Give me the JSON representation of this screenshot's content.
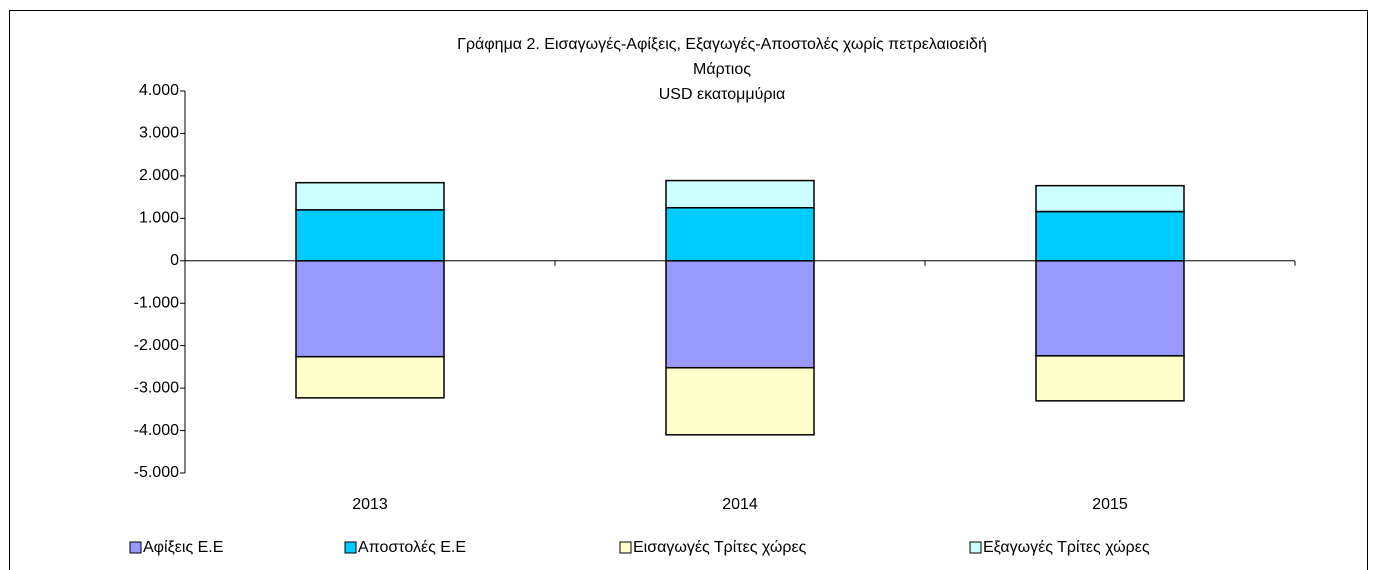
{
  "chart_data": {
    "type": "bar",
    "stacked": true,
    "title": "Γράφημα 2. Εισαγωγές-Αφίξεις,  Εξαγωγές-Αποστολές χωρίς πετρελαιοειδή",
    "subtitle": [
      "Μάρτιος",
      "USD εκατομμύρια"
    ],
    "categories": [
      "2013",
      "2014",
      "2015"
    ],
    "series": [
      {
        "name": "Αφίξεις Ε.Ε",
        "color": "#9999ff",
        "values": [
          -2260,
          -2520,
          -2240
        ]
      },
      {
        "name": "Αποστολές  Ε.Ε",
        "color": "#00ccff",
        "values": [
          1200,
          1250,
          1160
        ]
      },
      {
        "name": "Εισαγωγές Τρίτες χώρες",
        "color": "#ffffcc",
        "values": [
          -970,
          -1580,
          -1060
        ]
      },
      {
        "name": "Εξαγωγές Τρίτες χώρες",
        "color": "#ccffff",
        "values": [
          640,
          640,
          610
        ]
      }
    ],
    "ylim": [
      -5000,
      4000
    ],
    "yticks": [
      {
        "value": 4000,
        "label": "4.000"
      },
      {
        "value": 3000,
        "label": "3.000"
      },
      {
        "value": 2000,
        "label": "2.000"
      },
      {
        "value": 1000,
        "label": "1.000"
      },
      0,
      {
        "value": -1000,
        "label": "-1.000"
      },
      {
        "value": -2000,
        "label": "-2.000"
      },
      {
        "value": -3000,
        "label": "-3.000"
      },
      {
        "value": -4000,
        "label": "-4.000"
      },
      {
        "value": -5000,
        "label": "-5.000"
      }
    ],
    "grid": false,
    "legend": "bottom"
  }
}
